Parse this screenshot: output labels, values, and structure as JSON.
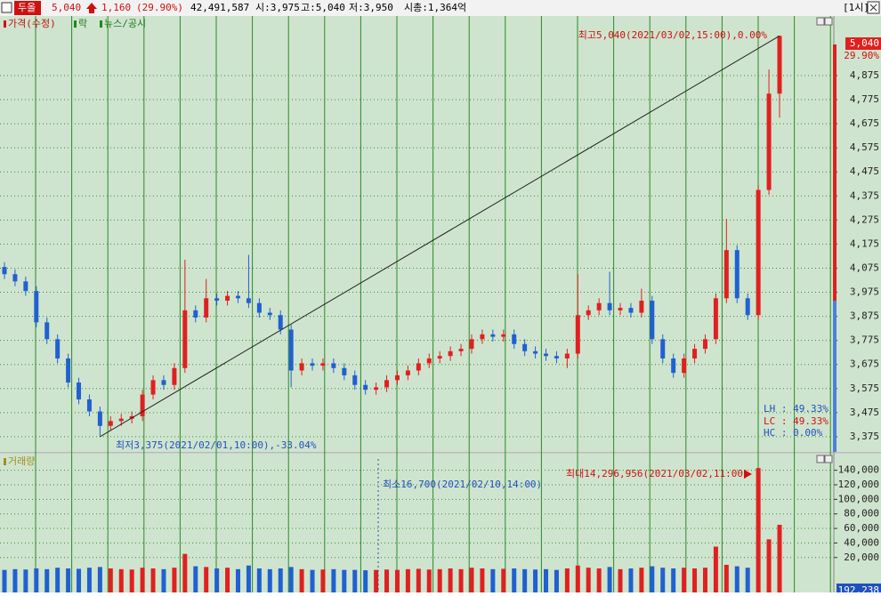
{
  "header": {
    "name": "두올",
    "price": "5,040",
    "change": "1,160",
    "change_pct": "(29.90%)",
    "volume": "42,491,587",
    "open": "시:3,975",
    "high": "고:5,040",
    "low": "저:3,950",
    "cap": "시총:1,364억",
    "period": "[1시]"
  },
  "chart_data": [
    {
      "type": "candlestick",
      "legend": [
        "가격(수정)",
        "락",
        "뉴스/공시"
      ],
      "up_color": "#e02020",
      "down_color": "#2060d0",
      "open": [
        4080,
        4050,
        4020,
        3980,
        3850,
        3780,
        3700,
        3600,
        3530,
        3480,
        3420,
        3440,
        3450,
        3460,
        3550,
        3610,
        3590,
        3660,
        3900,
        3870,
        3950,
        3940,
        3960,
        3950,
        3930,
        3890,
        3880,
        3820,
        3650,
        3680,
        3670,
        3680,
        3660,
        3630,
        3590,
        3570,
        3580,
        3610,
        3630,
        3650,
        3680,
        3700,
        3710,
        3730,
        3740,
        3780,
        3800,
        3790,
        3800,
        3760,
        3730,
        3720,
        3710,
        3700,
        3720,
        3880,
        3900,
        3930,
        3900,
        3910,
        3890,
        3940,
        3780,
        3700,
        3640,
        3700,
        3740,
        3780,
        3950,
        4150,
        3950,
        3880,
        4400,
        4800
      ],
      "high": [
        4100,
        4070,
        4040,
        4000,
        3870,
        3800,
        3720,
        3620,
        3550,
        3500,
        3460,
        3470,
        3480,
        3570,
        3630,
        3630,
        3680,
        4110,
        3920,
        4030,
        3970,
        3980,
        3980,
        4130,
        3950,
        3910,
        3900,
        3840,
        3700,
        3700,
        3700,
        3700,
        3680,
        3650,
        3610,
        3600,
        3630,
        3650,
        3670,
        3700,
        3720,
        3730,
        3750,
        3760,
        3800,
        3820,
        3820,
        3820,
        3820,
        3780,
        3750,
        3740,
        3730,
        3740,
        4050,
        3920,
        3950,
        4060,
        3930,
        3930,
        3990,
        3960,
        3800,
        3720,
        3720,
        3760,
        3800,
        3970,
        4280,
        4170,
        3970,
        4420,
        4900,
        5040
      ],
      "low": [
        4030,
        4000,
        3960,
        3830,
        3760,
        3680,
        3580,
        3510,
        3460,
        3375,
        3400,
        3420,
        3430,
        3440,
        3530,
        3570,
        3570,
        3640,
        3850,
        3850,
        3920,
        3920,
        3930,
        3910,
        3870,
        3860,
        3800,
        3580,
        3630,
        3650,
        3650,
        3640,
        3610,
        3570,
        3550,
        3550,
        3560,
        3590,
        3610,
        3630,
        3660,
        3680,
        3690,
        3710,
        3720,
        3760,
        3770,
        3770,
        3740,
        3710,
        3700,
        3690,
        3680,
        3660,
        3700,
        3860,
        3880,
        3880,
        3880,
        3870,
        3870,
        3760,
        3680,
        3620,
        3620,
        3680,
        3720,
        3760,
        3930,
        3930,
        3860,
        3860,
        4380,
        4700
      ],
      "close": [
        4050,
        4020,
        3980,
        3850,
        3780,
        3700,
        3600,
        3530,
        3480,
        3420,
        3440,
        3450,
        3460,
        3550,
        3610,
        3590,
        3660,
        3900,
        3870,
        3950,
        3940,
        3960,
        3950,
        3930,
        3890,
        3880,
        3820,
        3650,
        3680,
        3670,
        3680,
        3660,
        3630,
        3590,
        3570,
        3580,
        3610,
        3630,
        3650,
        3680,
        3700,
        3710,
        3730,
        3740,
        3780,
        3800,
        3790,
        3800,
        3760,
        3730,
        3720,
        3710,
        3700,
        3720,
        3880,
        3900,
        3930,
        3900,
        3910,
        3890,
        3940,
        3780,
        3700,
        3640,
        3700,
        3740,
        3780,
        3950,
        4150,
        3950,
        3880,
        4400,
        4800,
        5040
      ],
      "ylim": [
        3323,
        5078
      ],
      "yticks": [
        {
          "value": 3375,
          "label": "3,375"
        },
        {
          "value": 3475,
          "label": "3,475"
        },
        {
          "value": 3575,
          "label": "3,575"
        },
        {
          "value": 3675,
          "label": "3,675"
        },
        {
          "value": 3775,
          "label": "3,775"
        },
        {
          "value": 3875,
          "label": "3,875"
        },
        {
          "value": 3975,
          "label": "3,975"
        },
        {
          "value": 4075,
          "label": "4,075"
        },
        {
          "value": 4175,
          "label": "4,175"
        },
        {
          "value": 4275,
          "label": "4,275"
        },
        {
          "value": 4375,
          "label": "4,375"
        },
        {
          "value": 4475,
          "label": "4,475"
        },
        {
          "value": 4575,
          "label": "4,575"
        },
        {
          "value": 4675,
          "label": "4,675"
        },
        {
          "value": 4775,
          "label": "4,775"
        },
        {
          "value": 4875,
          "label": "4,875"
        }
      ],
      "annotations": {
        "high_label": "최고5,040(2021/03/02,15:00),0.00%",
        "low_label": "최저3,375(2021/02/01,10:00),-33.04%",
        "lh": "LH : 49.33%",
        "lc": "LC : 49.33%",
        "hc": "HC :  0.00%",
        "last_price": "5,040",
        "last_pct": "29.90%"
      }
    },
    {
      "type": "bar",
      "title": "거래량",
      "values": [
        3000,
        4000,
        3500,
        5000,
        4000,
        6000,
        5000,
        4500,
        6000,
        7000,
        5000,
        4000,
        3500,
        6000,
        5000,
        4000,
        6000,
        25000,
        8000,
        7000,
        5000,
        6000,
        4000,
        9000,
        5000,
        4000,
        5000,
        7000,
        4000,
        3000,
        3500,
        4000,
        3000,
        3000,
        2500,
        3000,
        3500,
        3000,
        4000,
        4500,
        3500,
        4000,
        5000,
        4000,
        6000,
        5000,
        4000,
        4500,
        5000,
        4000,
        3500,
        4000,
        3000,
        5000,
        9000,
        6000,
        5000,
        7000,
        4000,
        5000,
        6000,
        8000,
        6000,
        5000,
        6000,
        5000,
        6000,
        35000,
        10000,
        8000,
        6000,
        143000,
        45000,
        65000
      ],
      "ylim": [
        -28000,
        153000
      ],
      "yticks": [
        {
          "value": 20000,
          "label": "20,000"
        },
        {
          "value": 40000,
          "label": "40,000"
        },
        {
          "value": 60000,
          "label": "60,000"
        },
        {
          "value": 80000,
          "label": "80,000"
        },
        {
          "value": 100000,
          "label": "100,000"
        },
        {
          "value": 120000,
          "label": "120,000"
        },
        {
          "value": 140000,
          "label": "140,000"
        }
      ],
      "annotations": {
        "min_label": "최소16,700(2021/02/10,14:00)",
        "max_label": "최대14,296,956(2021/03/02,11:00)",
        "last": "192,238"
      }
    }
  ]
}
